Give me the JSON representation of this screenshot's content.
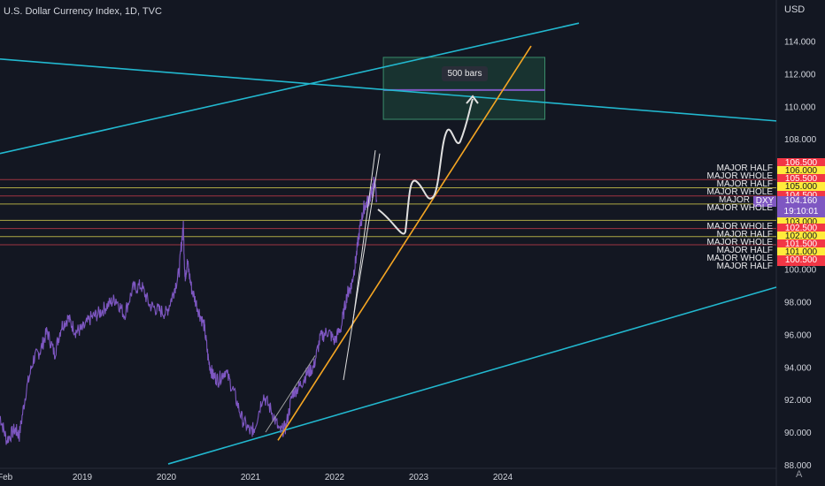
{
  "header": {
    "title": "U.S. Dollar Currency Index, 1D, TVC",
    "currency": "USD",
    "auto_label": "A"
  },
  "measure": {
    "label": "500 bars"
  },
  "symbol_tag": {
    "symbol": "DXY",
    "price": "104.160",
    "countdown": "19:10:01",
    "color": "#7e57c2"
  },
  "colors": {
    "background": "#131722",
    "price_line": "#7e57c2",
    "channel": "#22b8cf",
    "trendline": "#f5a623",
    "pattern": "#e0e0e0",
    "level_red": "#f23645",
    "level_yellow": "#ffeb3b",
    "measure_box": "#1e4b3c"
  },
  "levels": [
    {
      "price": 106.5,
      "label": "106.500",
      "tag_color": "red",
      "kind": ""
    },
    {
      "price": 106.0,
      "label": "106.000",
      "tag_color": "yellow",
      "kind": ""
    },
    {
      "price": 105.5,
      "label": "105.500",
      "tag_color": "red",
      "kind": "MAJOR HALF"
    },
    {
      "price": 105.0,
      "label": "105.000",
      "tag_color": "yellow",
      "kind": "MAJOR WHOLE"
    },
    {
      "price": 104.5,
      "label": "104.500",
      "tag_color": "red",
      "kind": "MAJOR HALF"
    },
    {
      "price": 104.0,
      "label": "104.000",
      "tag_color": "yellow",
      "kind": "MAJOR WHOLE"
    },
    {
      "price": 103.0,
      "label": "103.000",
      "tag_color": "yellow",
      "kind": "MAJOR WHOLE"
    },
    {
      "price": 102.5,
      "label": "102.500",
      "tag_color": "red",
      "kind": "MAJOR HALF"
    },
    {
      "price": 102.0,
      "label": "102.000",
      "tag_color": "yellow",
      "kind": "MAJOR WHOLE"
    },
    {
      "price": 101.5,
      "label": "101.500",
      "tag_color": "red",
      "kind": "MAJOR HALF"
    },
    {
      "price": 101.0,
      "label": "101.000",
      "tag_color": "yellow",
      "kind": ""
    },
    {
      "price": 100.5,
      "label": "100.500",
      "tag_color": "red",
      "kind": ""
    }
  ],
  "left_labels": [
    {
      "price": 105.5,
      "text": "MAJOR HALF"
    },
    {
      "price": 105.0,
      "text": "MAJOR WHOLE"
    },
    {
      "price": 104.5,
      "text": "MAJOR HALF"
    },
    {
      "price": 104.0,
      "text": "MAJOR WHOLE"
    },
    {
      "price": 103.5,
      "text": "MAJOR"
    },
    {
      "price": 103.0,
      "text": "MAJOR WHOLE"
    },
    {
      "price": 102.0,
      "text": "MAJOR WHOLE"
    },
    {
      "price": 101.5,
      "text": "MAJOR HALF"
    },
    {
      "price": 101.0,
      "text": "MAJOR WHOLE"
    },
    {
      "price": 100.5,
      "text": "MAJOR HALF"
    },
    {
      "price": 100.0,
      "text": "MAJOR WHOLE"
    },
    {
      "price": 99.5,
      "text": "MAJOR HALF"
    }
  ],
  "chart_data": {
    "type": "line",
    "title": "U.S. Dollar Currency Index, 1D, TVC",
    "xlabel": "",
    "ylabel": "USD",
    "ylim": [
      88,
      116
    ],
    "xlim": [
      2018.02,
      2025.2
    ],
    "y_ticks": [
      88,
      90,
      92,
      94,
      96,
      98,
      100,
      102,
      104,
      106,
      108,
      110,
      112,
      114
    ],
    "y_tick_labels": [
      "88.000",
      "90.000",
      "92.000",
      "94.000",
      "96.000",
      "98.000",
      "100.000",
      "102.000",
      "104.000",
      "106.000",
      "108.000",
      "110.000",
      "112.000",
      "114.000"
    ],
    "x_ticks": [
      2018.08,
      2019,
      2020,
      2021,
      2022,
      2023,
      2024
    ],
    "x_tick_labels": [
      "Feb",
      "2019",
      "2020",
      "2021",
      "2022",
      "2023",
      "2024"
    ],
    "grid": false,
    "series": [
      {
        "x": [
          2018.02,
          2018.1,
          2018.2,
          2018.25,
          2018.33,
          2018.42,
          2018.5,
          2018.58,
          2018.67,
          2018.75,
          2018.83,
          2018.92,
          2019.0,
          2019.1,
          2019.2,
          2019.3,
          2019.4,
          2019.5,
          2019.6,
          2019.7,
          2019.8,
          2019.9,
          2020.0,
          2020.08,
          2020.15,
          2020.2,
          2020.22,
          2020.25,
          2020.3,
          2020.38,
          2020.45,
          2020.5,
          2020.55,
          2020.62,
          2020.7,
          2020.8,
          2020.9,
          2021.0,
          2021.05,
          2021.15,
          2021.25,
          2021.35,
          2021.42,
          2021.5,
          2021.58,
          2021.67,
          2021.75,
          2021.83,
          2021.92,
          2022.0,
          2022.08,
          2022.15,
          2022.2,
          2022.25,
          2022.3,
          2022.35,
          2022.4,
          2022.45,
          2022.47,
          2022.5
        ],
        "values": [
          91.0,
          89.5,
          90.2,
          89.8,
          92.5,
          94.5,
          95.0,
          96.2,
          94.8,
          96.5,
          97.0,
          96.2,
          96.3,
          97.0,
          97.3,
          97.8,
          98.2,
          97.2,
          98.8,
          99.0,
          97.8,
          97.5,
          97.3,
          98.5,
          99.8,
          102.8,
          99.5,
          100.4,
          98.8,
          97.5,
          96.5,
          94.4,
          93.5,
          93.2,
          93.8,
          92.5,
          90.8,
          90.0,
          90.3,
          92.3,
          91.3,
          90.0,
          90.3,
          92.4,
          92.8,
          93.6,
          94.0,
          95.8,
          96.2,
          95.6,
          96.5,
          98.5,
          99.0,
          100.5,
          102.5,
          103.8,
          104.2,
          104.8,
          105.5,
          104.16
        ]
      }
    ]
  }
}
